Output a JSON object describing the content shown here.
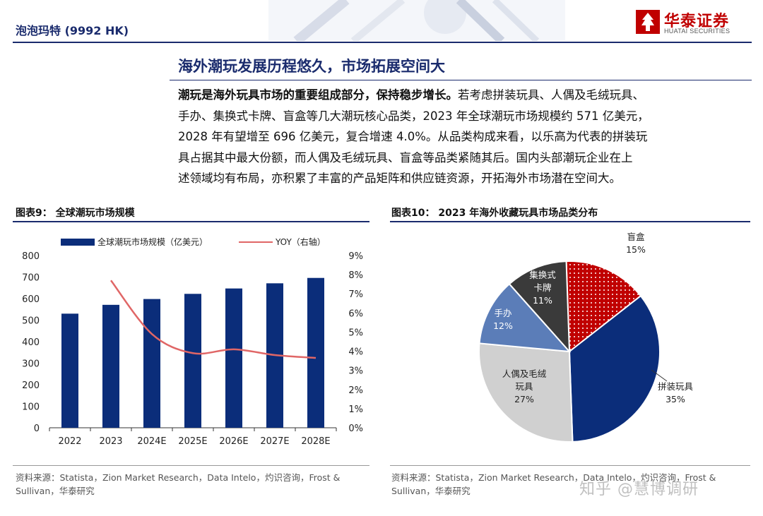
{
  "header": {
    "title": "泡泡玛特 (9992 HK)",
    "logo_cn": "华泰证券",
    "logo_en": "HUATAI SECURITIES"
  },
  "section": {
    "title": "海外潮玩发展历程悠久，市场拓展空间大",
    "lead": "潮玩是海外玩具市场的重要组成部分，保持稳步增长。",
    "line1_rest": "若考虑拼装玩具、人偶及毛绒玩具、",
    "line2": "手办、集换式卡牌、盲盒等几大潮玩核心品类，2023 年全球潮玩市场规模约 571 亿美元，",
    "line3": "2028 年有望增至 696 亿美元，复合增速 4.0%。从品类构成来看，以乐高为代表的拼装玩",
    "line4": "具占据其中最大份额，而人偶及毛绒玩具、盲盒等品类紧随其后。国内头部潮玩企业在上",
    "line5": "述领域均有布局，亦积累了丰富的产品矩阵和供应链资源，开拓海外市场潜在空间大。"
  },
  "fig9": {
    "title": "图表9：  全球潮玩市场规模",
    "source_line1": "资料来源：Statista，Zion Market Research，Data Intelo，灼识咨询，Frost &",
    "source_line2": "Sullivan，华泰研究"
  },
  "fig10": {
    "title": "图表10：  2023 年海外收藏玩具市场品类分布",
    "source_line1": "资料来源：Statista，Zion Market Research，Data Intelo，灼识咨询，Frost &",
    "source_line2": "Sullivan，华泰研究"
  },
  "watermark": "知乎 @慧博调研",
  "colors": {
    "navy": "#1a2b6d",
    "red": "#c00000",
    "bar": "#0b2d7a",
    "line": "#e06666"
  },
  "chart_data": [
    {
      "type": "bar",
      "categories": [
        "2022",
        "2023",
        "2024E",
        "2025E",
        "2026E",
        "2027E",
        "2028E"
      ],
      "series": [
        {
          "name": "全球潮玩市场规模（亿美元）",
          "type": "bar",
          "axis": "left",
          "values": [
            530,
            571,
            598,
            622,
            647,
            671,
            696
          ]
        },
        {
          "name": "YOY（右轴）",
          "type": "line",
          "axis": "right",
          "values": [
            null,
            7.7,
            4.9,
            3.9,
            4.1,
            3.8,
            3.65
          ]
        }
      ],
      "ylim": [
        0,
        800
      ],
      "yticks": [
        "800",
        "700",
        "600",
        "500",
        "400",
        "300",
        "200",
        "100",
        "0"
      ],
      "y2lim": [
        0,
        9
      ],
      "y2ticks": [
        "9%",
        "8%",
        "7%",
        "6%",
        "5%",
        "4%",
        "3%",
        "2%",
        "1%",
        "0%"
      ],
      "legend": "top",
      "grid": false
    },
    {
      "type": "pie",
      "slices": [
        {
          "label": "盲盒",
          "value": 15,
          "pct": "15%",
          "color": "#c00000",
          "pattern": "dots"
        },
        {
          "label": "拼装玩具",
          "value": 35,
          "pct": "35%",
          "color": "#0b2d7a"
        },
        {
          "label": "人偶及毛绒玩具",
          "label_lines": [
            "人偶及毛绒",
            "玩具"
          ],
          "value": 27,
          "pct": "27%",
          "color": "#d0d0d0"
        },
        {
          "label": "手办",
          "value": 12,
          "pct": "12%",
          "color": "#5b7db8"
        },
        {
          "label": "集换式卡牌",
          "label_lines": [
            "集换式",
            "卡牌"
          ],
          "value": 11,
          "pct": "11%",
          "color": "#3a3a3a"
        }
      ]
    }
  ]
}
